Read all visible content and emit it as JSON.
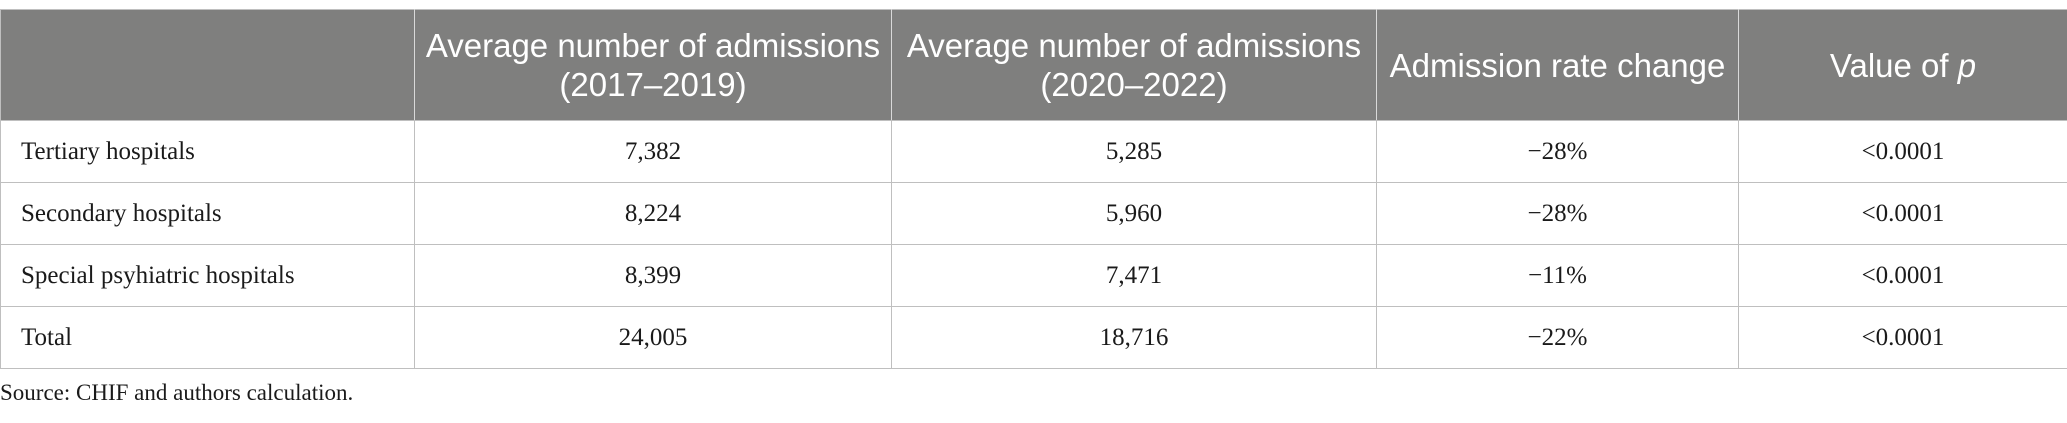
{
  "table": {
    "headers": [
      "",
      "Average number of admissions (2017–2019)",
      "Average number of admissions (2020–2022)",
      "Admission rate change"
    ],
    "header_p": {
      "prefix": "Value of ",
      "var": "p"
    },
    "rows": [
      {
        "label": "Tertiary hospitals",
        "avg_2017_2019": "7,382",
        "avg_2020_2022": "5,285",
        "change": "−28%",
        "p_value": "<0.0001"
      },
      {
        "label": "Secondary hospitals",
        "avg_2017_2019": "8,224",
        "avg_2020_2022": "5,960",
        "change": "−28%",
        "p_value": "<0.0001"
      },
      {
        "label": "Special psyhiatric hospitals",
        "avg_2017_2019": "8,399",
        "avg_2020_2022": "7,471",
        "change": "−11%",
        "p_value": "<0.0001"
      },
      {
        "label": "Total",
        "avg_2017_2019": "24,005",
        "avg_2020_2022": "18,716",
        "change": "−22%",
        "p_value": "<0.0001"
      }
    ]
  },
  "footnote": "Source: CHIF and authors calculation.",
  "colors": {
    "header_bg": "#7f7f7e",
    "header_text": "#ffffff",
    "border": "#bfbfbf"
  }
}
